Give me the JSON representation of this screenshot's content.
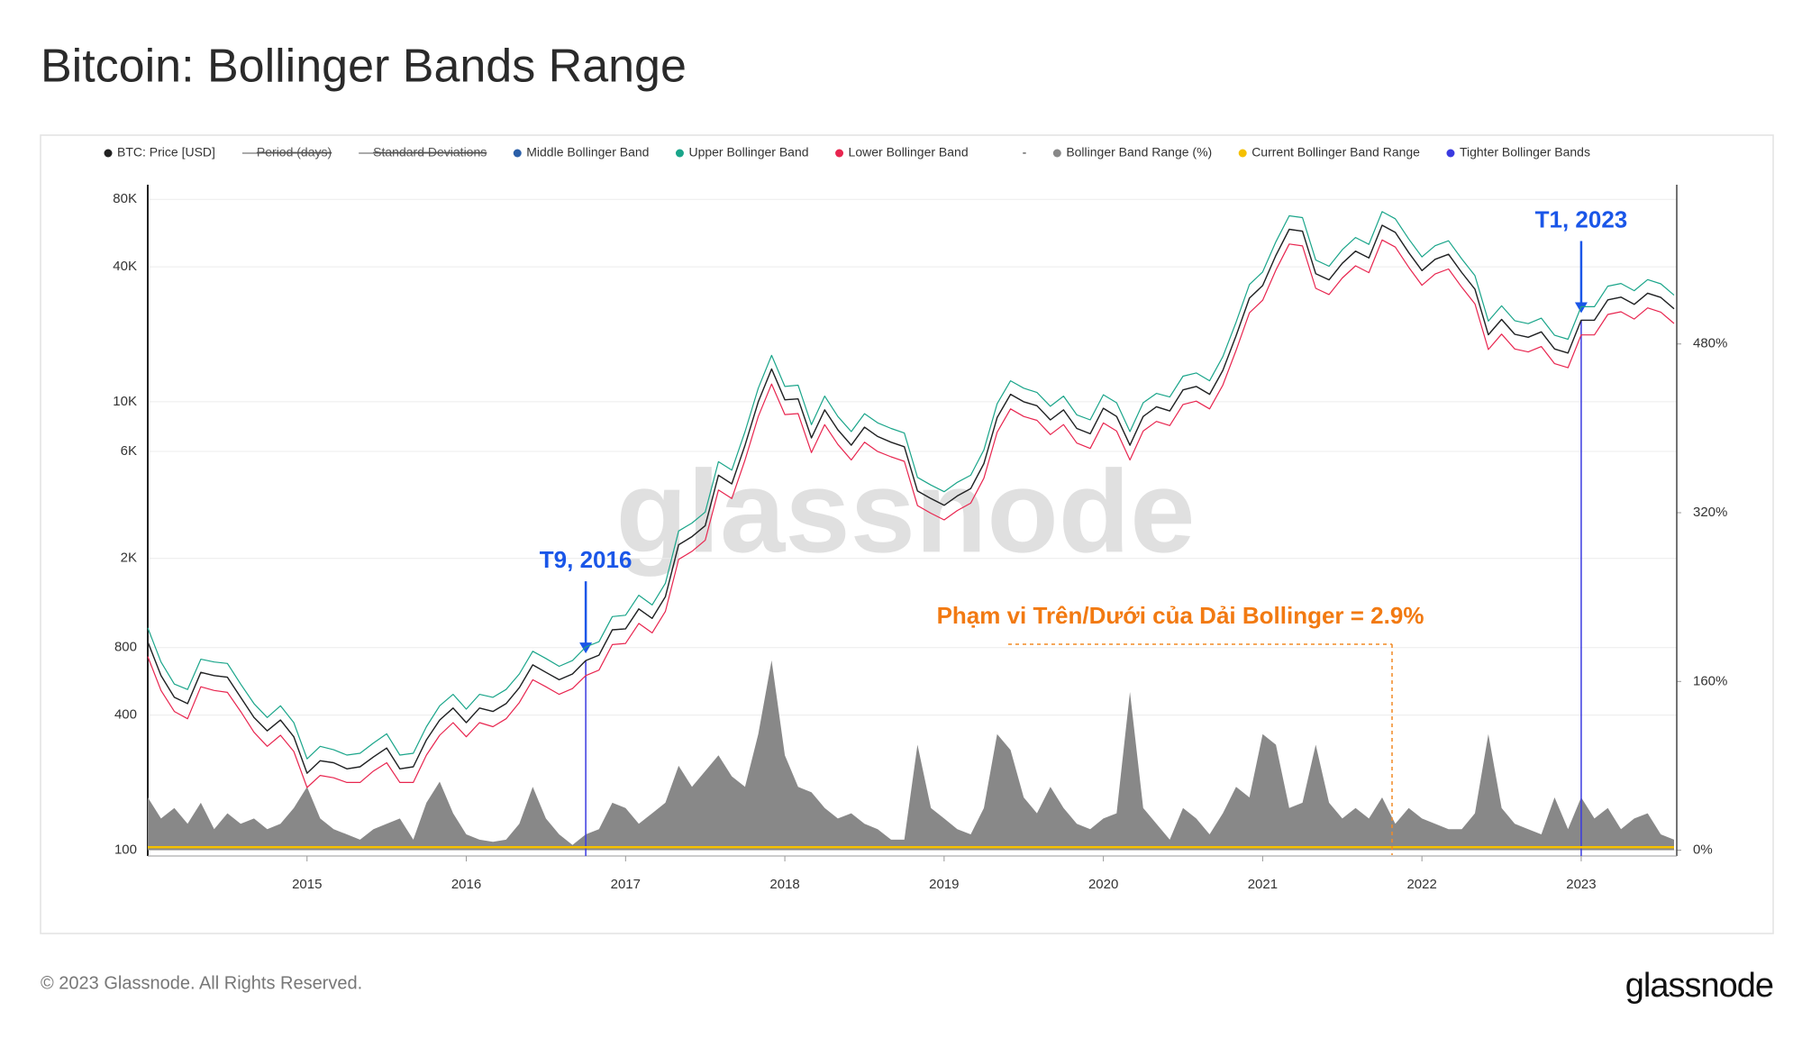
{
  "title": "Bitcoin: Bollinger Bands Range",
  "copyright": "© 2023 Glassnode. All Rights Reserved.",
  "logo_text": "glassnode",
  "watermark": "glassnode",
  "chart_data": {
    "type": "line",
    "ylog": true,
    "grid": true,
    "legend": "top",
    "annotation": "Phạm vi Trên/Dưới của Dải Bollinger = 2.9%",
    "xlim": [
      2014.0,
      2023.6
    ],
    "xticks": [
      2015,
      2016,
      2017,
      2018,
      2019,
      2020,
      2021,
      2022,
      2023
    ],
    "ylim": [
      94,
      93000
    ],
    "yticks": [
      100,
      400,
      800,
      {
        "value": 2000,
        "label": "2K"
      },
      {
        "value": 6000,
        "label": "6K"
      },
      {
        "value": 10000,
        "label": "10K"
      },
      {
        "value": 40000,
        "label": "40K"
      },
      {
        "value": 80000,
        "label": "80K"
      }
    ],
    "y2lim": [
      -5.5,
      631
    ],
    "y2ticks": [
      {
        "value": 0,
        "label": "0%"
      },
      {
        "value": 160,
        "label": "160%"
      },
      {
        "value": 320,
        "label": "320%"
      },
      {
        "value": 480,
        "label": "480%"
      }
    ],
    "x": [
      2014,
      2014.083,
      2014.167,
      2014.25,
      2014.333,
      2014.417,
      2014.5,
      2014.583,
      2014.667,
      2014.75,
      2014.833,
      2014.917,
      2015,
      2015.083,
      2015.167,
      2015.25,
      2015.333,
      2015.417,
      2015.5,
      2015.583,
      2015.667,
      2015.75,
      2015.833,
      2015.917,
      2016,
      2016.083,
      2016.167,
      2016.25,
      2016.333,
      2016.417,
      2016.5,
      2016.583,
      2016.667,
      2016.75,
      2016.833,
      2016.917,
      2017,
      2017.083,
      2017.167,
      2017.25,
      2017.333,
      2017.417,
      2017.5,
      2017.583,
      2017.667,
      2017.75,
      2017.833,
      2017.917,
      2018,
      2018.083,
      2018.167,
      2018.25,
      2018.333,
      2018.417,
      2018.5,
      2018.583,
      2018.667,
      2018.75,
      2018.833,
      2018.917,
      2019,
      2019.083,
      2019.167,
      2019.25,
      2019.333,
      2019.417,
      2019.5,
      2019.583,
      2019.667,
      2019.75,
      2019.833,
      2019.917,
      2020,
      2020.083,
      2020.167,
      2020.25,
      2020.333,
      2020.417,
      2020.5,
      2020.583,
      2020.667,
      2020.75,
      2020.833,
      2020.917,
      2021,
      2021.083,
      2021.167,
      2021.25,
      2021.333,
      2021.417,
      2021.5,
      2021.583,
      2021.667,
      2021.75,
      2021.833,
      2021.917,
      2022,
      2022.083,
      2022.167,
      2022.25,
      2022.333,
      2022.417,
      2022.5,
      2022.583,
      2022.667,
      2022.75,
      2022.833,
      2022.917,
      2023,
      2023.083,
      2023.167,
      2023.25,
      2023.333,
      2023.417,
      2023.5,
      2023.583
    ],
    "series": [
      {
        "name": "BTC: Price [USD]",
        "color": "#222222",
        "width": 1.4,
        "values": [
          850,
          600,
          480,
          450,
          620,
          600,
          590,
          480,
          390,
          340,
          380,
          320,
          220,
          250,
          245,
          230,
          235,
          260,
          285,
          230,
          235,
          310,
          380,
          430,
          370,
          430,
          415,
          450,
          530,
          670,
          620,
          575,
          610,
          700,
          740,
          960,
          970,
          1190,
          1080,
          1350,
          2300,
          2500,
          2800,
          4700,
          4300,
          6400,
          10000,
          14000,
          10200,
          10300,
          6900,
          9200,
          7500,
          6400,
          7700,
          7000,
          6600,
          6300,
          4000,
          3700,
          3450,
          3800,
          4100,
          5300,
          8500,
          10800,
          10000,
          9600,
          8300,
          9200,
          7600,
          7200,
          9350,
          8600,
          6400,
          8600,
          9500,
          9100,
          11300,
          11700,
          10800,
          13800,
          19700,
          29000,
          33000,
          45000,
          58800,
          57700,
          37300,
          35000,
          41500,
          47000,
          43800,
          61300,
          57000,
          46300,
          38500,
          43200,
          45500,
          37700,
          31800,
          19900,
          23300,
          20000,
          19400,
          20500,
          17200,
          16500,
          23100,
          23100,
          28500,
          29300,
          27200,
          30500,
          29200,
          26000
        ]
      },
      {
        "name": "Period (days)",
        "hidden": true
      },
      {
        "name": "Standard Deviations",
        "hidden": true
      },
      {
        "name": "Middle Bollinger Band",
        "color": "#2b5fa8",
        "width": 1,
        "values": [
          850,
          600,
          480,
          450,
          620,
          600,
          590,
          480,
          390,
          340,
          380,
          320,
          220,
          250,
          245,
          230,
          235,
          260,
          285,
          230,
          235,
          310,
          380,
          430,
          370,
          430,
          415,
          450,
          530,
          670,
          620,
          575,
          610,
          700,
          740,
          960,
          970,
          1190,
          1080,
          1350,
          2300,
          2500,
          2800,
          4700,
          4300,
          6400,
          10000,
          14000,
          10200,
          10300,
          6900,
          9200,
          7500,
          6400,
          7700,
          7000,
          6600,
          6300,
          4000,
          3700,
          3450,
          3800,
          4100,
          5300,
          8500,
          10800,
          10000,
          9600,
          8300,
          9200,
          7600,
          7200,
          9350,
          8600,
          6400,
          8600,
          9500,
          9100,
          11300,
          11700,
          10800,
          13800,
          19700,
          29000,
          33000,
          45000,
          58800,
          57700,
          37300,
          35000,
          41500,
          47000,
          43800,
          61300,
          57000,
          46300,
          38500,
          43200,
          45500,
          37700,
          31800,
          19900,
          23300,
          20000,
          19400,
          20500,
          17200,
          16500,
          23100,
          23100,
          28500,
          29300,
          27200,
          30500,
          29200,
          26000
        ]
      },
      {
        "name": "Upper Bollinger Band",
        "color": "#1aa58a",
        "width": 1.2,
        "values": [
          980,
          690,
          550,
          520,
          710,
          690,
          680,
          550,
          450,
          390,
          440,
          370,
          255,
          290,
          280,
          265,
          270,
          300,
          330,
          265,
          270,
          355,
          440,
          495,
          425,
          495,
          480,
          520,
          610,
          770,
          715,
          660,
          700,
          805,
          850,
          1100,
          1115,
          1370,
          1240,
          1550,
          2650,
          2875,
          3220,
          5400,
          4950,
          7360,
          11500,
          16100,
          11700,
          11850,
          7900,
          10600,
          8600,
          7360,
          8850,
          8050,
          7600,
          7250,
          4600,
          4250,
          3970,
          4370,
          4700,
          6100,
          9800,
          12400,
          11500,
          11000,
          9550,
          10600,
          8740,
          8300,
          10750,
          9900,
          7360,
          9900,
          10900,
          10500,
          13000,
          13450,
          12400,
          15900,
          22650,
          33350,
          37950,
          51750,
          67600,
          66350,
          42900,
          40250,
          47700,
          54050,
          50400,
          70500,
          65550,
          53250,
          44300,
          49700,
          52300,
          43350,
          36550,
          22900,
          26800,
          23000,
          22300,
          23600,
          19800,
          19000,
          26550,
          26550,
          32800,
          33700,
          31300,
          35100,
          33600,
          29900
        ]
      },
      {
        "name": "Lower Bollinger Band",
        "color": "#e8254f",
        "width": 1.2,
        "values": [
          730,
          515,
          415,
          385,
          535,
          515,
          505,
          415,
          335,
          290,
          325,
          275,
          190,
          215,
          210,
          200,
          200,
          225,
          245,
          200,
          200,
          265,
          325,
          370,
          320,
          370,
          355,
          385,
          455,
          575,
          535,
          495,
          525,
          600,
          635,
          825,
          835,
          1025,
          930,
          1160,
          1980,
          2150,
          2410,
          4040,
          3700,
          5500,
          8600,
          12000,
          8770,
          8860,
          5930,
          7900,
          6450,
          5500,
          6600,
          6000,
          5680,
          5420,
          3440,
          3180,
          2970,
          3270,
          3530,
          4560,
          7310,
          9290,
          8600,
          8260,
          7140,
          7910,
          6540,
          6190,
          8040,
          7400,
          5500,
          7400,
          8170,
          7830,
          9720,
          10060,
          9290,
          11870,
          16940,
          24940,
          28380,
          38700,
          50570,
          49620,
          32080,
          30100,
          35690,
          40420,
          37670,
          52720,
          49020,
          39820,
          33110,
          37150,
          39130,
          32420,
          27350,
          17110,
          20040,
          17200,
          16680,
          17630,
          14790,
          14190,
          19870,
          19870,
          24510,
          25200,
          23390,
          26230,
          25110,
          22360
        ]
      },
      {
        "name": "-"
      },
      {
        "name": "Bollinger Band Range (%)",
        "color": "#888888",
        "axis": "y2",
        "fill": true,
        "values": [
          50,
          30,
          40,
          25,
          45,
          20,
          35,
          25,
          30,
          20,
          25,
          40,
          60,
          30,
          20,
          15,
          10,
          20,
          25,
          30,
          10,
          45,
          65,
          35,
          15,
          10,
          8,
          10,
          25,
          60,
          30,
          15,
          5,
          15,
          20,
          45,
          40,
          25,
          35,
          45,
          80,
          60,
          75,
          90,
          70,
          60,
          110,
          180,
          90,
          60,
          55,
          40,
          30,
          35,
          25,
          20,
          10,
          10,
          100,
          40,
          30,
          20,
          15,
          40,
          110,
          95,
          50,
          35,
          60,
          40,
          25,
          20,
          30,
          35,
          150,
          40,
          25,
          10,
          40,
          30,
          15,
          35,
          60,
          50,
          110,
          100,
          40,
          45,
          100,
          45,
          30,
          40,
          30,
          50,
          25,
          40,
          30,
          25,
          20,
          20,
          35,
          110,
          40,
          25,
          20,
          15,
          50,
          20,
          50,
          30,
          40,
          20,
          30,
          35,
          15,
          10
        ]
      },
      {
        "name": "Current Bollinger Band Range",
        "color": "#f5c000",
        "axis": "y2",
        "width": 2.5,
        "x": [
          2014.0,
          2023.583
        ],
        "values": [
          2.9,
          2.9
        ]
      },
      {
        "name": "Tighter Bollinger Bands",
        "color": "#3a3ae0",
        "kind": "vline",
        "x": [
          2016.75,
          2023.0
        ],
        "labels": [
          "T9, 2016",
          "T1, 2023"
        ]
      }
    ]
  }
}
